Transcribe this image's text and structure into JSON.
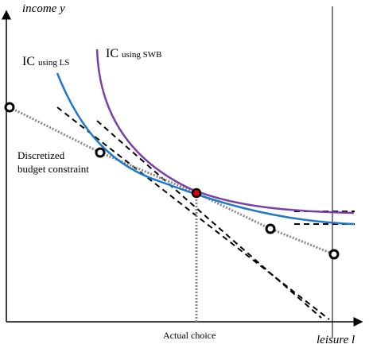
{
  "axes": {
    "y_label": "income y",
    "x_label": "leisure l"
  },
  "curves": {
    "ic_ls": {
      "main": "IC",
      "sub": "using LS"
    },
    "ic_swb": {
      "main": "IC",
      "sub": "using SWB"
    }
  },
  "budget_label": [
    "Discretized",
    "budget constraint"
  ],
  "choice_label": "Actual choice"
}
